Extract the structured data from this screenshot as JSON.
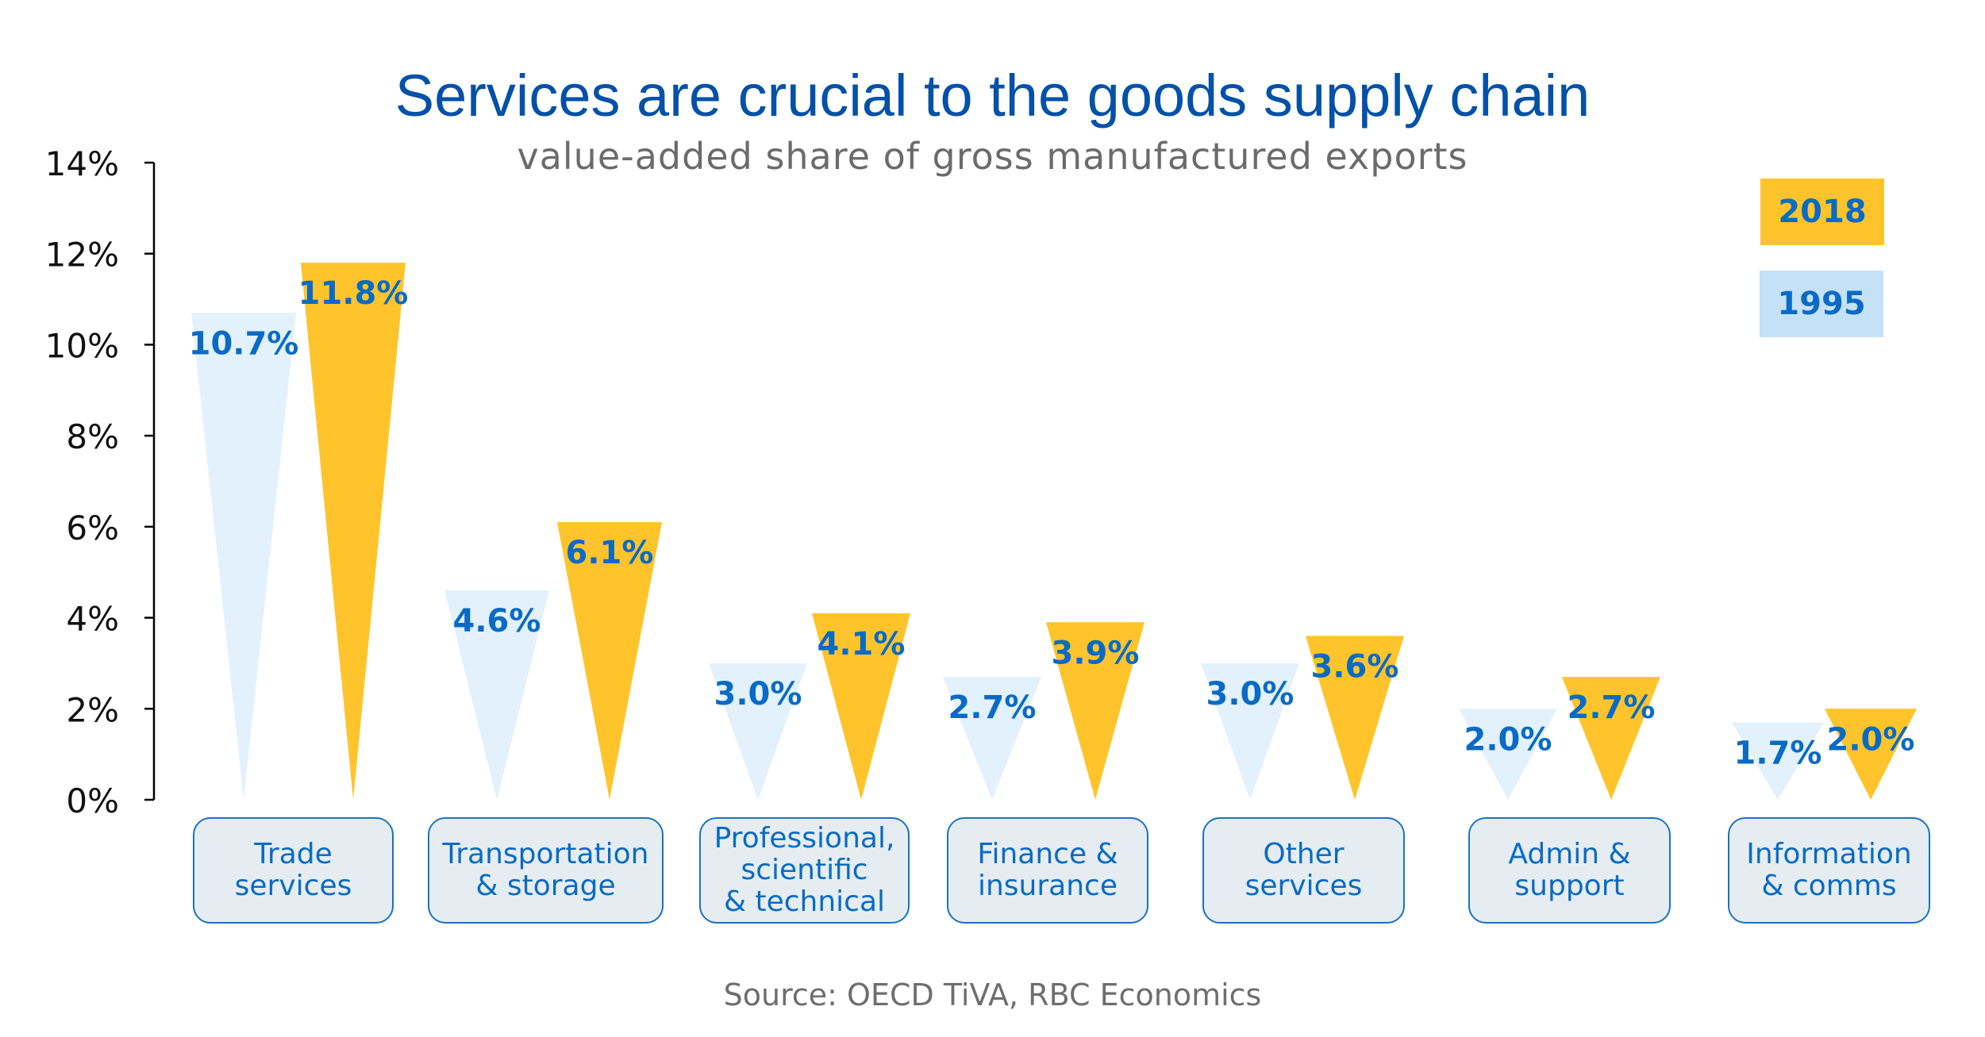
{
  "chart_data": {
    "type": "bar",
    "title": "Services are crucial to the goods supply chain",
    "subtitle": "value-added share of gross manufactured exports",
    "xlabel": "",
    "ylabel": "",
    "ylim": [
      0,
      14
    ],
    "yticks": [
      "0%",
      "2%",
      "4%",
      "6%",
      "8%",
      "10%",
      "12%",
      "14%"
    ],
    "ytick_values": [
      0,
      2,
      4,
      6,
      8,
      10,
      12,
      14
    ],
    "grid": false,
    "legend_position": "top-right",
    "categories": [
      "Trade\nservices",
      "Transportation\n& storage",
      "Professional,\nscientific\n& technical",
      "Finance &\ninsurance",
      "Other\nservices",
      "Admin &\nsupport",
      "Information\n& comms"
    ],
    "series": [
      {
        "name": "1995",
        "color": "#E3F1FC",
        "values": [
          10.7,
          4.6,
          3.0,
          2.7,
          3.0,
          2.0,
          1.7
        ],
        "labels": [
          "10.7%",
          "4.6%",
          "3.0%",
          "2.7%",
          "3.0%",
          "2.0%",
          "1.7%"
        ]
      },
      {
        "name": "2018",
        "color": "#FFC42B",
        "values": [
          11.8,
          6.1,
          4.1,
          3.9,
          3.6,
          2.7,
          2.0
        ],
        "labels": [
          "11.8%",
          "6.1%",
          "4.1%",
          "3.9%",
          "3.6%",
          "2.7%",
          "2.0%"
        ]
      }
    ],
    "legend": [
      {
        "label": "2018",
        "color": "#FFC42B"
      },
      {
        "label": "1995",
        "color": "#C5E1F7"
      }
    ],
    "label_color": "#0A6BC4",
    "source": "Source: OECD TiVA, RBC Economics"
  }
}
